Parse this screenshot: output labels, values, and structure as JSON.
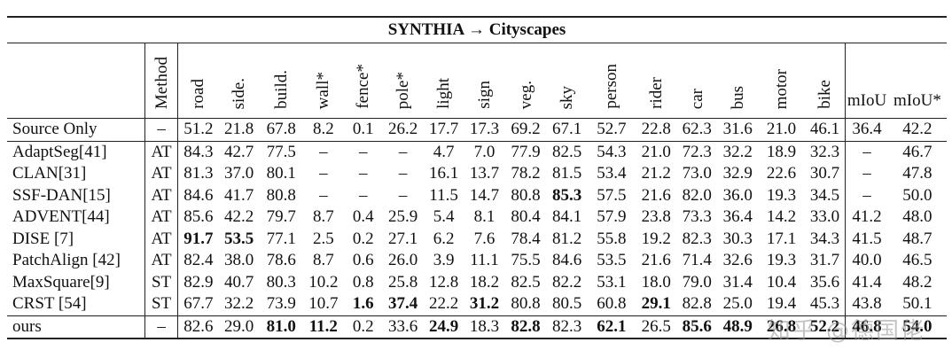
{
  "title": "SYNTHIA → Cityscapes",
  "header": {
    "method": "Method",
    "classes": [
      "road",
      "side.",
      "build.",
      "wall*",
      "fence*",
      "pole*",
      "light",
      "sign",
      "veg.",
      "sky",
      "person",
      "rider",
      "car",
      "bus",
      "motor",
      "bike"
    ],
    "miou": "mIoU",
    "miou_star": "mIoU*"
  },
  "rows": [
    {
      "name": "Source Only",
      "method": "–",
      "vals": [
        "51.2",
        "21.8",
        "67.8",
        "8.2",
        "0.1",
        "26.2",
        "17.7",
        "17.3",
        "69.2",
        "67.1",
        "52.7",
        "22.8",
        "62.3",
        "31.6",
        "21.0",
        "46.1"
      ],
      "bold": [],
      "miou": "36.4",
      "miou_star": "42.2",
      "miou_bold": false,
      "miou_star_bold": false
    },
    {
      "name": "AdaptSeg[41]",
      "method": "AT",
      "vals": [
        "84.3",
        "42.7",
        "77.5",
        "–",
        "–",
        "–",
        "4.7",
        "7.0",
        "77.9",
        "82.5",
        "54.3",
        "21.0",
        "72.3",
        "32.2",
        "18.9",
        "32.3"
      ],
      "bold": [],
      "miou": "–",
      "miou_star": "46.7",
      "miou_bold": false,
      "miou_star_bold": false
    },
    {
      "name": "CLAN[31]",
      "method": "AT",
      "vals": [
        "81.3",
        "37.0",
        "80.1",
        "–",
        "–",
        "–",
        "16.1",
        "13.7",
        "78.2",
        "81.5",
        "53.4",
        "21.2",
        "73.0",
        "32.9",
        "22.6",
        "30.7"
      ],
      "bold": [],
      "miou": "–",
      "miou_star": "47.8",
      "miou_bold": false,
      "miou_star_bold": false
    },
    {
      "name": "SSF-DAN[15]",
      "method": "AT",
      "vals": [
        "84.6",
        "41.7",
        "80.8",
        "–",
        "–",
        "–",
        "11.5",
        "14.7",
        "80.8",
        "85.3",
        "57.5",
        "21.6",
        "82.0",
        "36.0",
        "19.3",
        "34.5"
      ],
      "bold": [
        9
      ],
      "miou": "–",
      "miou_star": "50.0",
      "miou_bold": false,
      "miou_star_bold": false
    },
    {
      "name": "ADVENT[44]",
      "method": "AT",
      "vals": [
        "85.6",
        "42.2",
        "79.7",
        "8.7",
        "0.4",
        "25.9",
        "5.4",
        "8.1",
        "80.4",
        "84.1",
        "57.9",
        "23.8",
        "73.3",
        "36.4",
        "14.2",
        "33.0"
      ],
      "bold": [],
      "miou": "41.2",
      "miou_star": "48.0",
      "miou_bold": false,
      "miou_star_bold": false
    },
    {
      "name": "DISE [7]",
      "method": "AT",
      "vals": [
        "91.7",
        "53.5",
        "77.1",
        "2.5",
        "0.2",
        "27.1",
        "6.2",
        "7.6",
        "78.4",
        "81.2",
        "55.8",
        "19.2",
        "82.3",
        "30.3",
        "17.1",
        "34.3"
      ],
      "bold": [
        0,
        1
      ],
      "miou": "41.5",
      "miou_star": "48.7",
      "miou_bold": false,
      "miou_star_bold": false
    },
    {
      "name": "PatchAlign [42]",
      "method": "AT",
      "vals": [
        "82.4",
        "38.0",
        "78.6",
        "8.7",
        "0.6",
        "26.0",
        "3.9",
        "11.1",
        "75.5",
        "84.6",
        "53.5",
        "21.6",
        "71.4",
        "32.6",
        "19.3",
        "31.7"
      ],
      "bold": [],
      "miou": "40.0",
      "miou_star": "46.5",
      "miou_bold": false,
      "miou_star_bold": false
    },
    {
      "name": "MaxSquare[9]",
      "method": "ST",
      "vals": [
        "82.9",
        "40.7",
        "80.3",
        "10.2",
        "0.8",
        "25.8",
        "12.8",
        "18.2",
        "82.5",
        "82.2",
        "53.1",
        "18.0",
        "79.0",
        "31.4",
        "10.4",
        "35.6"
      ],
      "bold": [],
      "miou": "41.4",
      "miou_star": "48.2",
      "miou_bold": false,
      "miou_star_bold": false
    },
    {
      "name": "CRST [54]",
      "method": "ST",
      "vals": [
        "67.7",
        "32.2",
        "73.9",
        "10.7",
        "1.6",
        "37.4",
        "22.2",
        "31.2",
        "80.8",
        "80.5",
        "60.8",
        "29.1",
        "82.8",
        "25.0",
        "19.4",
        "45.3"
      ],
      "bold": [
        4,
        5,
        7,
        11
      ],
      "miou": "43.8",
      "miou_star": "50.1",
      "miou_bold": false,
      "miou_star_bold": false
    },
    {
      "name": "ours",
      "method": "–",
      "vals": [
        "82.6",
        "29.0",
        "81.0",
        "11.2",
        "0.2",
        "33.6",
        "24.9",
        "18.3",
        "82.8",
        "82.3",
        "62.1",
        "26.5",
        "85.6",
        "48.9",
        "26.8",
        "52.2"
      ],
      "bold": [
        2,
        3,
        6,
        8,
        10,
        12,
        13,
        14,
        15
      ],
      "miou": "46.8",
      "miou_star": "54.0",
      "miou_bold": true,
      "miou_star_bold": true
    }
  ],
  "watermark": "知乎 @德国佬"
}
